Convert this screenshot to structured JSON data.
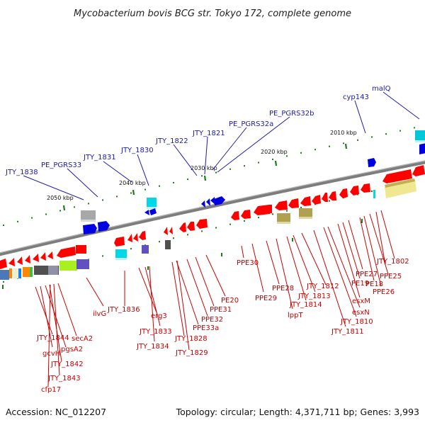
{
  "title": "Mycobacterium bovis BCG str. Tokyo 172, complete genome",
  "footer": {
    "accession": "Accession: NC_012207",
    "summary": "Topology: circular; Length: 4,371,711 bp; Genes: 3,993"
  },
  "scale_labels": [
    "2050 kbp",
    "2040 kbp",
    "2030 kbp",
    "2020 kbp",
    "2010 kbp"
  ],
  "colors": {
    "forward": "#1a1ab0",
    "reverse": "#c80000",
    "backbone": "#808080",
    "tick": "#1e7a1e"
  },
  "forward_genes": [
    "JTY_1838",
    "PE_PGRS33",
    "JTY_1831",
    "JTY_1830",
    "JTY_1822",
    "JTY_1821",
    "PE_PGRS32a",
    "PE_PGRS32b",
    "cyp143",
    "malQ"
  ],
  "reverse_genes": [
    "JTY_1844",
    "gcvH",
    "pgsA2",
    "secA2",
    "JTY_1842",
    "JTY_1843",
    "cfp17",
    "ilvG",
    "JTY_1836",
    "erg3",
    "JTY_1833",
    "JTY_1834",
    "JTY_1828",
    "PPE33a",
    "JTY_1829",
    "PPE32",
    "PPE31",
    "PE20",
    "PPE30",
    "PPE29",
    "PPE28",
    "lppT",
    "JTY_1814",
    "JTY_1813",
    "JTY_1812",
    "JTY_1811",
    "JTY_1810",
    "esxN",
    "esxM",
    "PE19",
    "PPE27",
    "PE18",
    "PPE26",
    "PPE25",
    "JTY_1802"
  ]
}
